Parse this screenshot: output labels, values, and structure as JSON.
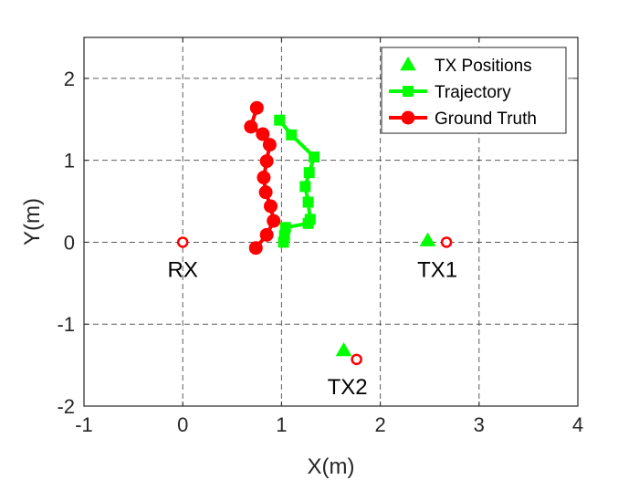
{
  "chart_data": {
    "type": "scatter",
    "xlabel": "X(m)",
    "ylabel": "Y(m)",
    "xlim": [
      -1,
      4
    ],
    "ylim": [
      -2,
      2.5
    ],
    "xticks": [
      -1,
      0,
      1,
      2,
      3,
      4
    ],
    "yticks": [
      -2,
      -1,
      0,
      1,
      2
    ],
    "grid": true,
    "legend_position": "top-right",
    "series": [
      {
        "name": "TX Positions",
        "marker": "triangle",
        "line": false,
        "color": "#00ff00",
        "x": [
          2.48,
          1.63
        ],
        "y": [
          0.02,
          -1.32
        ]
      },
      {
        "name": "Trajectory",
        "marker": "square",
        "line": true,
        "color": "#00ff00",
        "x": [
          0.98,
          1.1,
          1.33,
          1.28,
          1.24,
          1.27,
          1.29,
          1.27,
          1.04,
          1.03,
          1.02
        ],
        "y": [
          1.49,
          1.31,
          1.04,
          0.85,
          0.68,
          0.49,
          0.28,
          0.23,
          0.18,
          0.08,
          0.0
        ]
      },
      {
        "name": "Ground Truth",
        "marker": "circle",
        "line": true,
        "color": "#ff0000",
        "x": [
          0.75,
          0.69,
          0.81,
          0.88,
          0.85,
          0.82,
          0.84,
          0.89,
          0.92,
          0.85,
          0.74
        ],
        "y": [
          1.64,
          1.41,
          1.32,
          1.19,
          0.99,
          0.79,
          0.61,
          0.44,
          0.26,
          0.09,
          -0.07
        ]
      }
    ],
    "reference_points": [
      {
        "label": "RX",
        "x": 0,
        "y": 0,
        "label_side": "below"
      },
      {
        "label": "TX1",
        "x": 2.67,
        "y": 0,
        "label_side": "below-left"
      },
      {
        "label": "TX2",
        "x": 1.76,
        "y": -1.43,
        "label_side": "below-left"
      }
    ],
    "colors": {
      "axis": "#262626",
      "grid": "#262626",
      "reference_marker": "#ff0000"
    }
  }
}
